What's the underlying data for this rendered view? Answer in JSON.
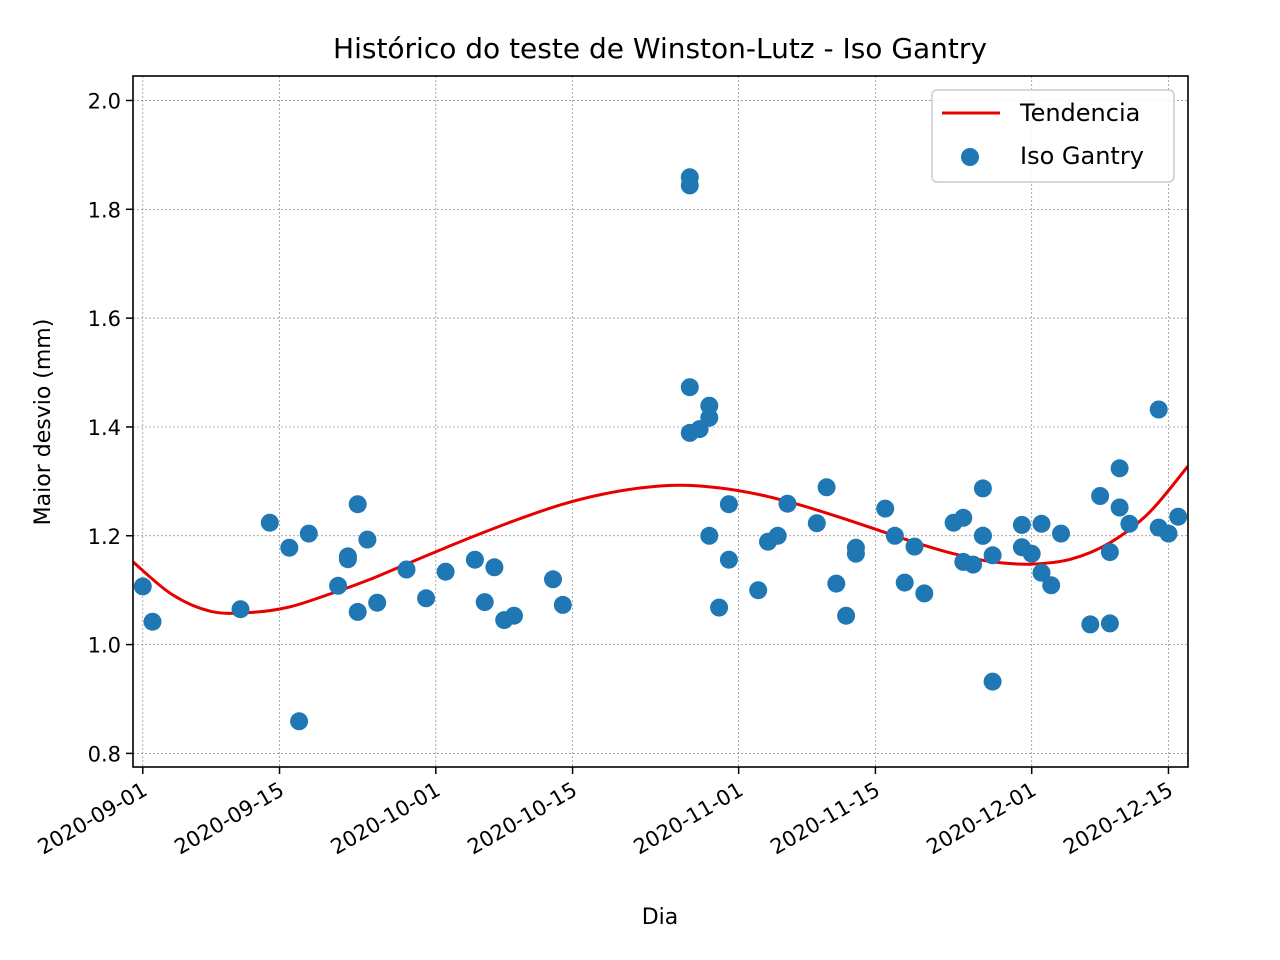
{
  "chart_data": {
    "type": "scatter",
    "title": "Histórico do teste de Winston-Lutz - Iso Gantry",
    "xlabel": "Dia",
    "ylabel": "Maior desvio (mm)",
    "x_axis_type": "date",
    "xlim": [
      "2020-08-31",
      "2020-12-17"
    ],
    "ylim": [
      0.775,
      2.045
    ],
    "x_ticks": [
      "2020-09-01",
      "2020-09-15",
      "2020-10-01",
      "2020-10-15",
      "2020-11-01",
      "2020-11-15",
      "2020-12-01",
      "2020-12-15"
    ],
    "y_ticks": [
      "0.8",
      "1.0",
      "1.2",
      "1.4",
      "1.6",
      "1.8",
      "2.0"
    ],
    "grid": true,
    "legend_position": "top-right",
    "series": [
      {
        "name": "Tendencia",
        "kind": "line",
        "color": "#e80000",
        "x": [
          "2020-08-31",
          "2020-09-04",
          "2020-09-08",
          "2020-09-12",
          "2020-09-16",
          "2020-09-20",
          "2020-09-24",
          "2020-09-28",
          "2020-10-02",
          "2020-10-06",
          "2020-10-10",
          "2020-10-14",
          "2020-10-18",
          "2020-10-22",
          "2020-10-26",
          "2020-10-30",
          "2020-11-03",
          "2020-11-07",
          "2020-11-11",
          "2020-11-15",
          "2020-11-19",
          "2020-11-23",
          "2020-11-27",
          "2020-12-01",
          "2020-12-05",
          "2020-12-09",
          "2020-12-13",
          "2020-12-17"
        ],
        "y": [
          1.152,
          1.092,
          1.061,
          1.059,
          1.069,
          1.092,
          1.118,
          1.148,
          1.178,
          1.207,
          1.234,
          1.258,
          1.276,
          1.288,
          1.293,
          1.288,
          1.276,
          1.258,
          1.236,
          1.212,
          1.188,
          1.167,
          1.152,
          1.148,
          1.157,
          1.187,
          1.242,
          1.328
        ]
      },
      {
        "name": "Iso Gantry",
        "kind": "scatter",
        "color": "#1f77b4",
        "x": [
          "2020-09-01",
          "2020-09-02",
          "2020-09-11",
          "2020-09-14",
          "2020-09-16",
          "2020-09-17",
          "2020-09-18",
          "2020-09-21",
          "2020-09-22",
          "2020-09-22",
          "2020-09-23",
          "2020-09-23",
          "2020-09-24",
          "2020-09-25",
          "2020-09-28",
          "2020-09-30",
          "2020-10-02",
          "2020-10-05",
          "2020-10-06",
          "2020-10-07",
          "2020-10-08",
          "2020-10-09",
          "2020-10-13",
          "2020-10-14",
          "2020-10-27",
          "2020-10-27",
          "2020-10-27",
          "2020-10-27",
          "2020-10-28",
          "2020-10-29",
          "2020-10-29",
          "2020-10-29",
          "2020-10-30",
          "2020-10-31",
          "2020-10-31",
          "2020-11-03",
          "2020-11-04",
          "2020-11-05",
          "2020-11-06",
          "2020-11-09",
          "2020-11-10",
          "2020-11-11",
          "2020-11-12",
          "2020-11-13",
          "2020-11-13",
          "2020-11-16",
          "2020-11-17",
          "2020-11-18",
          "2020-11-19",
          "2020-11-20",
          "2020-11-23",
          "2020-11-24",
          "2020-11-24",
          "2020-11-25",
          "2020-11-26",
          "2020-11-26",
          "2020-11-26",
          "2020-11-27",
          "2020-11-27",
          "2020-11-30",
          "2020-11-30",
          "2020-12-01",
          "2020-12-02",
          "2020-12-02",
          "2020-12-03",
          "2020-12-04",
          "2020-12-07",
          "2020-12-08",
          "2020-12-09",
          "2020-12-09",
          "2020-12-10",
          "2020-12-10",
          "2020-12-11",
          "2020-12-14",
          "2020-12-14",
          "2020-12-15",
          "2020-12-16"
        ],
        "y": [
          1.107,
          1.042,
          1.065,
          1.224,
          1.178,
          0.859,
          1.204,
          1.108,
          1.162,
          1.157,
          1.258,
          1.06,
          1.193,
          1.077,
          1.138,
          1.085,
          1.134,
          1.156,
          1.078,
          1.142,
          1.045,
          1.053,
          1.12,
          1.073,
          1.859,
          1.844,
          1.473,
          1.389,
          1.396,
          1.439,
          1.417,
          1.2,
          1.068,
          1.258,
          1.156,
          1.1,
          1.189,
          1.2,
          1.259,
          1.223,
          1.289,
          1.112,
          1.053,
          1.178,
          1.167,
          1.25,
          1.2,
          1.114,
          1.18,
          1.094,
          1.224,
          1.233,
          1.152,
          1.147,
          1.287,
          1.2,
          1.2,
          1.164,
          0.932,
          1.22,
          1.179,
          1.167,
          1.222,
          1.132,
          1.109,
          1.204,
          1.037,
          1.273,
          1.039,
          1.17,
          1.324,
          1.252,
          1.222,
          1.432,
          1.215,
          1.204,
          1.235
        ]
      }
    ]
  }
}
